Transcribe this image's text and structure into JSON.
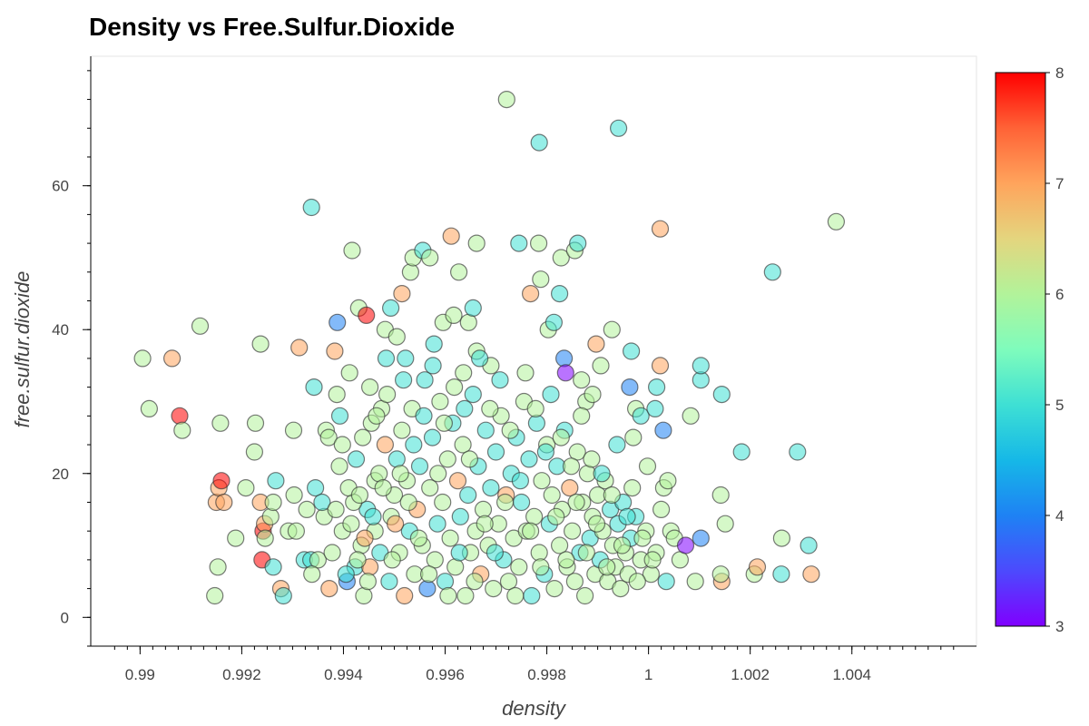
{
  "chart_data": {
    "type": "scatter",
    "title": "Density vs Free.Sulfur.Dioxide",
    "xlabel": "density",
    "ylabel": "free.sulfur.dioxide",
    "xlim": [
      0.98903,
      1.00645
    ],
    "ylim": [
      -4,
      78
    ],
    "x_ticks": [
      0.99,
      0.992,
      0.994,
      0.996,
      0.998,
      1,
      1.002,
      1.004
    ],
    "x_tick_labels": [
      "0.99",
      "0.992",
      "0.994",
      "0.996",
      "0.998",
      "1",
      "1.002",
      "1.004"
    ],
    "y_ticks": [
      0,
      20,
      40,
      60
    ],
    "y_tick_labels": [
      "0",
      "20",
      "40",
      "60"
    ],
    "grid": false,
    "colorbar": {
      "min": 3,
      "max": 8,
      "ticks": [
        3,
        4,
        5,
        6,
        7,
        8
      ],
      "tick_labels": [
        "3",
        "4",
        "5",
        "6",
        "7",
        "8"
      ],
      "colormap": "rainbow",
      "placement": "right"
    },
    "points": [
      [
        0.99005,
        36,
        6
      ],
      [
        0.99063,
        36,
        7
      ],
      [
        0.99018,
        29,
        6
      ],
      [
        0.99078,
        28,
        8
      ],
      [
        0.99083,
        26,
        6
      ],
      [
        0.99118,
        40.5,
        6
      ],
      [
        0.99147,
        3,
        6
      ],
      [
        0.99153,
        7,
        6
      ],
      [
        0.9915,
        16,
        7
      ],
      [
        0.99155,
        18,
        7
      ],
      [
        0.99165,
        16,
        7
      ],
      [
        0.9916,
        19,
        8
      ],
      [
        0.99158,
        27,
        6
      ],
      [
        0.99188,
        11,
        6
      ],
      [
        0.99208,
        18,
        6
      ],
      [
        0.99227,
        27,
        6
      ],
      [
        0.99225,
        23,
        6
      ],
      [
        0.99237,
        38,
        6
      ],
      [
        0.99237,
        16,
        7
      ],
      [
        0.9924,
        8,
        8
      ],
      [
        0.99242,
        12,
        8
      ],
      [
        0.99245,
        13,
        7
      ],
      [
        0.99246,
        11,
        6
      ],
      [
        0.99262,
        7,
        5
      ],
      [
        0.99257,
        14,
        6
      ],
      [
        0.99262,
        16,
        6
      ],
      [
        0.99267,
        19,
        5
      ],
      [
        0.99277,
        4,
        7
      ],
      [
        0.99282,
        3,
        5
      ],
      [
        0.99292,
        12,
        6
      ],
      [
        0.99307,
        12,
        6
      ],
      [
        0.99303,
        17,
        6
      ],
      [
        0.99302,
        26,
        6
      ],
      [
        0.99313,
        37.5,
        7
      ],
      [
        0.99323,
        8,
        5
      ],
      [
        0.99328,
        15,
        6
      ],
      [
        0.99336,
        8,
        5
      ],
      [
        0.99337,
        57,
        5
      ],
      [
        0.99342,
        32,
        5
      ],
      [
        0.9935,
        8,
        6
      ],
      [
        0.99362,
        14,
        6
      ],
      [
        0.99366,
        26,
        6
      ],
      [
        0.99371,
        25,
        6
      ],
      [
        0.99383,
        37,
        7
      ],
      [
        0.99387,
        31,
        6
      ],
      [
        0.99388,
        41,
        4
      ],
      [
        0.99393,
        28,
        5
      ],
      [
        0.99398,
        24,
        6
      ],
      [
        0.99407,
        5,
        4
      ],
      [
        0.99412,
        34,
        6
      ],
      [
        0.99417,
        51,
        6
      ],
      [
        0.99423,
        7,
        5
      ],
      [
        0.9943,
        43,
        6
      ],
      [
        0.99445,
        42,
        8
      ],
      [
        0.99452,
        32,
        6
      ],
      [
        0.99447,
        15,
        5
      ],
      [
        0.99462,
        19,
        6
      ],
      [
        0.99455,
        27,
        6
      ],
      [
        0.99475,
        29,
        6
      ],
      [
        0.99482,
        40,
        6
      ],
      [
        0.99484,
        36,
        5
      ],
      [
        0.99493,
        43,
        5
      ],
      [
        0.99505,
        39,
        6
      ],
      [
        0.99515,
        45,
        7
      ],
      [
        0.99522,
        36,
        5
      ],
      [
        0.99532,
        48,
        6
      ],
      [
        0.99537,
        50,
        6
      ],
      [
        0.99556,
        51,
        5
      ],
      [
        0.9957,
        50,
        6
      ],
      [
        0.99578,
        38,
        5
      ],
      [
        0.99596,
        41,
        6
      ],
      [
        0.99617,
        42,
        6
      ],
      [
        0.99612,
        53,
        7
      ],
      [
        0.99627,
        48,
        6
      ],
      [
        0.99636,
        34,
        6
      ],
      [
        0.99646,
        41,
        6
      ],
      [
        0.99655,
        43,
        5
      ],
      [
        0.99662,
        52,
        6
      ],
      [
        0.99662,
        37,
        6
      ],
      [
        0.9969,
        35,
        6
      ],
      [
        0.99721,
        72,
        6
      ],
      [
        0.99745,
        52,
        5
      ],
      [
        0.99784,
        52,
        6
      ],
      [
        0.99785,
        66,
        5
      ],
      [
        0.99788,
        47,
        6
      ],
      [
        0.99768,
        45,
        7
      ],
      [
        0.99803,
        40,
        6
      ],
      [
        0.99814,
        41,
        5
      ],
      [
        0.99825,
        45,
        5
      ],
      [
        0.99828,
        50,
        6
      ],
      [
        0.99834,
        36,
        4
      ],
      [
        0.99837,
        34,
        3
      ],
      [
        0.99855,
        51,
        6
      ],
      [
        0.99861,
        52,
        5
      ],
      [
        0.99868,
        33,
        6
      ],
      [
        0.99877,
        30,
        6
      ],
      [
        0.9989,
        31,
        6
      ],
      [
        0.99897,
        38,
        7
      ],
      [
        0.99906,
        35,
        6
      ],
      [
        0.99928,
        40,
        6
      ],
      [
        0.99941,
        68,
        5
      ],
      [
        0.99963,
        32,
        4
      ],
      [
        0.99966,
        37,
        5
      ],
      [
        0.99975,
        29,
        6
      ],
      [
        0.9997,
        25,
        6
      ],
      [
        0.99985,
        28,
        5
      ],
      [
        1.00013,
        29,
        5
      ],
      [
        1.00023,
        35,
        7
      ],
      [
        1.00016,
        32,
        5
      ],
      [
        1.00023,
        54,
        7
      ],
      [
        1.00029,
        26,
        4
      ],
      [
        1.0003,
        18,
        6
      ],
      [
        1.00038,
        19,
        6
      ],
      [
        1.00044,
        12,
        6
      ],
      [
        1.00051,
        11,
        6
      ],
      [
        1.00062,
        8,
        6
      ],
      [
        1.00073,
        10,
        3
      ],
      [
        1.00083,
        28,
        6
      ],
      [
        1.00103,
        11,
        4
      ],
      [
        1.00103,
        33,
        5
      ],
      [
        1.00103,
        35,
        5
      ],
      [
        1.00092,
        5,
        6
      ],
      [
        1.00144,
        5,
        7
      ],
      [
        1.00142,
        6,
        6
      ],
      [
        1.00142,
        17,
        6
      ],
      [
        1.00144,
        31,
        5
      ],
      [
        1.00151,
        13,
        6
      ],
      [
        1.00183,
        23,
        5
      ],
      [
        1.00208,
        6,
        6
      ],
      [
        1.00214,
        7,
        7
      ],
      [
        1.00244,
        48,
        5
      ],
      [
        1.00261,
        6,
        5
      ],
      [
        1.00262,
        11,
        6
      ],
      [
        1.00293,
        23,
        5
      ],
      [
        1.00315,
        10,
        5
      ],
      [
        1.0032,
        6,
        7
      ],
      [
        1.00369,
        55,
        6
      ],
      [
        0.9942,
        16,
        6
      ],
      [
        0.99435,
        10,
        6
      ],
      [
        0.9944,
        3,
        6
      ],
      [
        0.99452,
        7,
        7
      ],
      [
        0.99462,
        12,
        6
      ],
      [
        0.9947,
        20,
        6
      ],
      [
        0.99482,
        24,
        7
      ],
      [
        0.9949,
        5,
        5
      ],
      [
        0.99494,
        14,
        6
      ],
      [
        0.995,
        17,
        6
      ],
      [
        0.99505,
        22,
        5
      ],
      [
        0.9951,
        9,
        6
      ],
      [
        0.99515,
        26,
        6
      ],
      [
        0.9952,
        3,
        7
      ],
      [
        0.99525,
        19,
        6
      ],
      [
        0.9953,
        12,
        5
      ],
      [
        0.99535,
        29,
        6
      ],
      [
        0.9954,
        6,
        6
      ],
      [
        0.99545,
        15,
        7
      ],
      [
        0.9955,
        21,
        5
      ],
      [
        0.99555,
        10,
        6
      ],
      [
        0.9956,
        33,
        5
      ],
      [
        0.99565,
        4,
        4
      ],
      [
        0.9957,
        18,
        6
      ],
      [
        0.99575,
        25,
        5
      ],
      [
        0.9958,
        8,
        6
      ],
      [
        0.99585,
        13,
        5
      ],
      [
        0.9959,
        30,
        6
      ],
      [
        0.99595,
        16,
        6
      ],
      [
        0.996,
        5,
        5
      ],
      [
        0.99605,
        22,
        6
      ],
      [
        0.9961,
        11,
        6
      ],
      [
        0.99615,
        27,
        5
      ],
      [
        0.9962,
        7,
        6
      ],
      [
        0.99625,
        19,
        7
      ],
      [
        0.9963,
        14,
        5
      ],
      [
        0.99635,
        24,
        6
      ],
      [
        0.9964,
        3,
        6
      ],
      [
        0.99645,
        17,
        5
      ],
      [
        0.9965,
        9,
        6
      ],
      [
        0.99655,
        31,
        5
      ],
      [
        0.9966,
        12,
        6
      ],
      [
        0.99665,
        21,
        5
      ],
      [
        0.9967,
        6,
        7
      ],
      [
        0.99675,
        15,
        6
      ],
      [
        0.9968,
        26,
        5
      ],
      [
        0.99685,
        10,
        6
      ],
      [
        0.9969,
        18,
        5
      ],
      [
        0.99695,
        4,
        6
      ],
      [
        0.997,
        23,
        5
      ],
      [
        0.99705,
        13,
        6
      ],
      [
        0.9971,
        28,
        6
      ],
      [
        0.99715,
        8,
        5
      ],
      [
        0.9972,
        17,
        7
      ],
      [
        0.99725,
        5,
        6
      ],
      [
        0.9973,
        20,
        5
      ],
      [
        0.99735,
        11,
        6
      ],
      [
        0.9974,
        25,
        5
      ],
      [
        0.99745,
        7,
        6
      ],
      [
        0.9975,
        16,
        5
      ],
      [
        0.99755,
        30,
        6
      ],
      [
        0.9976,
        12,
        6
      ],
      [
        0.99765,
        22,
        5
      ],
      [
        0.9977,
        3,
        5
      ],
      [
        0.99775,
        14,
        6
      ],
      [
        0.9978,
        27,
        5
      ],
      [
        0.99785,
        9,
        6
      ],
      [
        0.9979,
        19,
        6
      ],
      [
        0.99795,
        6,
        5
      ],
      [
        0.998,
        24,
        6
      ],
      [
        0.99805,
        13,
        5
      ],
      [
        0.9981,
        17,
        6
      ],
      [
        0.99815,
        4,
        6
      ],
      [
        0.9982,
        21,
        5
      ],
      [
        0.99825,
        10,
        6
      ],
      [
        0.9983,
        15,
        6
      ],
      [
        0.99835,
        26,
        5
      ],
      [
        0.9984,
        7,
        6
      ],
      [
        0.99845,
        18,
        7
      ],
      [
        0.9985,
        12,
        6
      ],
      [
        0.99855,
        5,
        6
      ],
      [
        0.9986,
        23,
        6
      ],
      [
        0.99865,
        9,
        5
      ],
      [
        0.9987,
        16,
        6
      ],
      [
        0.99875,
        3,
        6
      ],
      [
        0.9988,
        20,
        6
      ],
      [
        0.99885,
        11,
        5
      ],
      [
        0.9989,
        14,
        6
      ],
      [
        0.99895,
        6,
        6
      ],
      [
        0.999,
        17,
        6
      ],
      [
        0.99905,
        8,
        5
      ],
      [
        0.9991,
        12,
        6
      ],
      [
        0.99915,
        19,
        6
      ],
      [
        0.9992,
        5,
        6
      ],
      [
        0.99925,
        15,
        5
      ],
      [
        0.9993,
        10,
        6
      ],
      [
        0.99935,
        7,
        6
      ],
      [
        0.9994,
        13,
        5
      ],
      [
        0.99945,
        4,
        6
      ],
      [
        0.9995,
        16,
        5
      ],
      [
        0.99955,
        9,
        6
      ],
      [
        0.9996,
        6,
        6
      ],
      [
        0.99965,
        11,
        5
      ],
      [
        0.99975,
        14,
        5
      ],
      [
        0.99985,
        8,
        6
      ],
      [
        0.99995,
        12,
        6
      ],
      [
        1.00005,
        6,
        6
      ],
      [
        1.00015,
        9,
        6
      ],
      [
        1.00025,
        15,
        6
      ],
      [
        1.00035,
        5,
        5
      ],
      [
        0.99338,
        6,
        6
      ],
      [
        0.99345,
        18,
        5
      ],
      [
        0.99358,
        16,
        5
      ],
      [
        0.99372,
        4,
        7
      ],
      [
        0.99378,
        9,
        6
      ],
      [
        0.99385,
        15,
        6
      ],
      [
        0.99392,
        21,
        6
      ],
      [
        0.99398,
        12,
        6
      ],
      [
        0.99405,
        6,
        5
      ],
      [
        0.9941,
        18,
        6
      ],
      [
        0.99415,
        13,
        6
      ],
      [
        0.99425,
        22,
        5
      ],
      [
        0.99428,
        8,
        6
      ],
      [
        0.99432,
        17,
        6
      ],
      [
        0.99438,
        25,
        6
      ],
      [
        0.99442,
        11,
        7
      ],
      [
        0.99448,
        5,
        6
      ],
      [
        0.99458,
        14,
        5
      ],
      [
        0.99465,
        28,
        6
      ],
      [
        0.99472,
        9,
        5
      ],
      [
        0.99478,
        18,
        6
      ],
      [
        0.99486,
        31,
        6
      ],
      [
        0.99496,
        8,
        6
      ],
      [
        0.99502,
        13,
        7
      ],
      [
        0.99512,
        20,
        6
      ],
      [
        0.99518,
        33,
        5
      ],
      [
        0.99528,
        16,
        6
      ],
      [
        0.99538,
        24,
        5
      ],
      [
        0.99548,
        11,
        6
      ],
      [
        0.99558,
        28,
        5
      ],
      [
        0.99568,
        6,
        6
      ],
      [
        0.99576,
        35,
        5
      ],
      [
        0.99586,
        20,
        6
      ],
      [
        0.99598,
        27,
        6
      ],
      [
        0.99606,
        3,
        6
      ],
      [
        0.99618,
        32,
        6
      ],
      [
        0.99628,
        9,
        5
      ],
      [
        0.99638,
        29,
        5
      ],
      [
        0.99648,
        22,
        6
      ],
      [
        0.99658,
        5,
        6
      ],
      [
        0.99668,
        36,
        5
      ],
      [
        0.99678,
        13,
        6
      ],
      [
        0.99688,
        29,
        6
      ],
      [
        0.99698,
        9,
        5
      ],
      [
        0.99708,
        33,
        5
      ],
      [
        0.99718,
        16,
        6
      ],
      [
        0.99728,
        26,
        6
      ],
      [
        0.99738,
        3,
        6
      ],
      [
        0.99748,
        19,
        5
      ],
      [
        0.99758,
        34,
        6
      ],
      [
        0.99768,
        12,
        6
      ],
      [
        0.99778,
        29,
        6
      ],
      [
        0.99788,
        7,
        6
      ],
      [
        0.99798,
        23,
        5
      ],
      [
        0.99808,
        31,
        5
      ],
      [
        0.99818,
        14,
        6
      ],
      [
        0.99828,
        25,
        6
      ],
      [
        0.99838,
        8,
        6
      ],
      [
        0.99848,
        21,
        6
      ],
      [
        0.99858,
        16,
        6
      ],
      [
        0.99868,
        28,
        6
      ],
      [
        0.99878,
        9,
        6
      ],
      [
        0.99888,
        22,
        6
      ],
      [
        0.99898,
        13,
        6
      ],
      [
        0.99908,
        20,
        5
      ],
      [
        0.99918,
        7,
        6
      ],
      [
        0.99928,
        17,
        6
      ],
      [
        0.99938,
        24,
        5
      ],
      [
        0.99948,
        10,
        6
      ],
      [
        0.99958,
        14,
        5
      ],
      [
        0.99968,
        18,
        6
      ],
      [
        0.99978,
        5,
        6
      ],
      [
        0.99988,
        11,
        6
      ],
      [
        0.99998,
        21,
        6
      ],
      [
        1.00008,
        8,
        6
      ]
    ]
  }
}
